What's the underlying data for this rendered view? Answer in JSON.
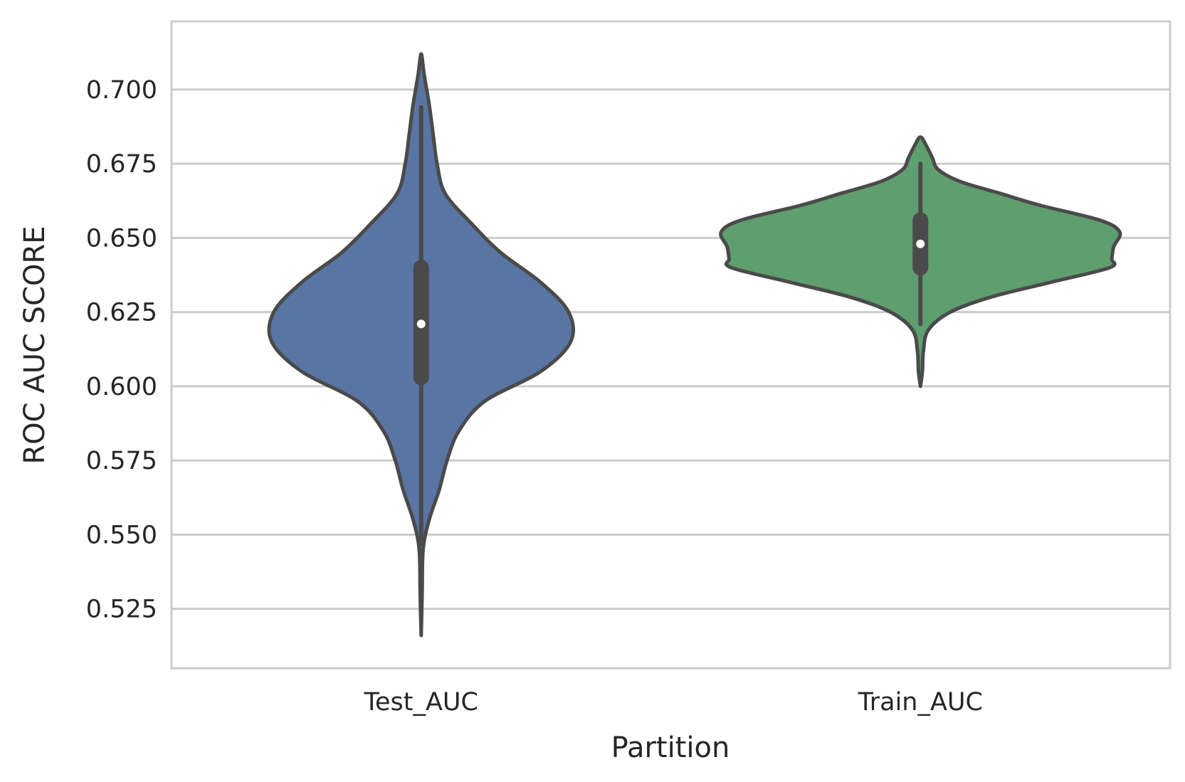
{
  "chart_data": {
    "type": "violin",
    "xlabel": "Partition",
    "ylabel": "ROC AUC SCORE",
    "ylim": [
      0.505,
      0.723
    ],
    "yticks": [
      "0.525",
      "0.550",
      "0.575",
      "0.600",
      "0.625",
      "0.650",
      "0.675",
      "0.700"
    ],
    "categories": [
      "Test_AUC",
      "Train_AUC"
    ],
    "grid": "horizontal",
    "series": [
      {
        "category": "Test_AUC",
        "color": "#5975a4",
        "min": 0.516,
        "max": 0.712,
        "q1": 0.603,
        "median": 0.621,
        "q3": 0.64,
        "whisker_low": 0.547,
        "whisker_high": 0.694,
        "density": [
          [
            0.516,
            0.0
          ],
          [
            0.53,
            0.005
          ],
          [
            0.545,
            0.01
          ],
          [
            0.555,
            0.04
          ],
          [
            0.565,
            0.09
          ],
          [
            0.575,
            0.13
          ],
          [
            0.585,
            0.19
          ],
          [
            0.595,
            0.32
          ],
          [
            0.605,
            0.6
          ],
          [
            0.615,
            0.75
          ],
          [
            0.625,
            0.74
          ],
          [
            0.635,
            0.6
          ],
          [
            0.645,
            0.4
          ],
          [
            0.655,
            0.25
          ],
          [
            0.665,
            0.12
          ],
          [
            0.675,
            0.08
          ],
          [
            0.685,
            0.06
          ],
          [
            0.695,
            0.04
          ],
          [
            0.705,
            0.015
          ],
          [
            0.712,
            0.0
          ]
        ]
      },
      {
        "category": "Train_AUC",
        "color": "#5f9e6e",
        "min": 0.6,
        "max": 0.684,
        "q1": 0.64,
        "median": 0.648,
        "q3": 0.656,
        "whisker_low": 0.621,
        "whisker_high": 0.675,
        "density": [
          [
            0.6,
            0.0
          ],
          [
            0.605,
            0.01
          ],
          [
            0.612,
            0.015
          ],
          [
            0.619,
            0.04
          ],
          [
            0.625,
            0.15
          ],
          [
            0.63,
            0.35
          ],
          [
            0.635,
            0.65
          ],
          [
            0.64,
            0.95
          ],
          [
            0.643,
            0.96
          ],
          [
            0.647,
            0.97
          ],
          [
            0.652,
            1.0
          ],
          [
            0.656,
            0.9
          ],
          [
            0.661,
            0.6
          ],
          [
            0.665,
            0.4
          ],
          [
            0.669,
            0.2
          ],
          [
            0.673,
            0.09
          ],
          [
            0.677,
            0.06
          ],
          [
            0.681,
            0.03
          ],
          [
            0.684,
            0.0
          ]
        ]
      }
    ]
  }
}
